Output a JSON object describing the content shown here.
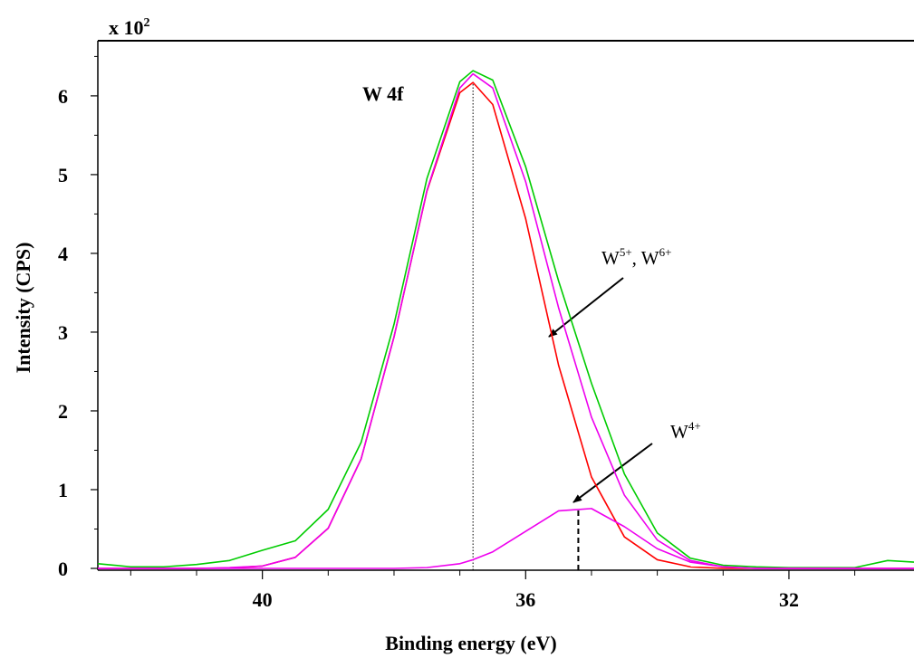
{
  "chart_data": {
    "type": "line",
    "title": "W 4f",
    "x_label": "Binding energy (eV)",
    "y_label": "Intensity (CPS)",
    "y_multiplier": [
      "x 10",
      "2"
    ],
    "x": [
      42.5,
      42,
      41.5,
      41,
      40.5,
      40,
      39.5,
      39,
      38.5,
      38,
      37.5,
      37,
      36.8,
      36.5,
      36,
      35.5,
      35,
      34.5,
      34,
      33.5,
      33,
      32.5,
      32,
      31.5,
      31,
      30.5,
      30.1
    ],
    "series": [
      {
        "color": "#00cc00",
        "values": [
          0.06,
          0.02,
          0.02,
          0.05,
          0.1,
          0.23,
          0.35,
          0.75,
          1.6,
          3.1,
          4.95,
          6.18,
          6.32,
          6.2,
          5.1,
          3.65,
          2.35,
          1.2,
          0.45,
          0.13,
          0.04,
          0.02,
          0.01,
          0.01,
          0.01,
          0.1,
          0.08
        ]
      },
      {
        "color": "#ff0000",
        "values": [
          0,
          0,
          0,
          0,
          0.005,
          0.03,
          0.14,
          0.51,
          1.39,
          2.94,
          4.79,
          6.04,
          6.17,
          5.89,
          4.44,
          2.58,
          1.16,
          0.4,
          0.11,
          0.02,
          0,
          0,
          0,
          0,
          0,
          0,
          0
        ]
      },
      {
        "color": "#ee00ee",
        "values": [
          0,
          0,
          0,
          0,
          0.01,
          0.03,
          0.14,
          0.51,
          1.39,
          2.94,
          4.8,
          6.1,
          6.28,
          6.1,
          4.91,
          3.31,
          1.92,
          0.93,
          0.36,
          0.1,
          0.02,
          0,
          0,
          0,
          0,
          0,
          0
        ]
      },
      {
        "color": "#ee00ee",
        "values": [
          0,
          0,
          0,
          0,
          0,
          0,
          0,
          0,
          0,
          0,
          0.01,
          0.06,
          0.11,
          0.21,
          0.47,
          0.73,
          0.76,
          0.53,
          0.25,
          0.08,
          0.02,
          0,
          0,
          0,
          0,
          0,
          0
        ]
      }
    ],
    "xlim": [
      42.5,
      30.1
    ],
    "ylim": [
      0,
      6.7
    ],
    "xticks": [
      40,
      36,
      32
    ],
    "yticks": [
      0,
      1,
      2,
      3,
      4,
      5,
      6
    ],
    "x_minor_ticks": [
      42,
      41,
      39,
      38,
      37,
      35,
      34,
      33,
      31
    ],
    "y_minor_ticks": [
      0.5,
      1.5,
      2.5,
      3.5,
      4.5,
      5.5,
      6.5
    ],
    "peak_markers": [
      {
        "x": 36.8,
        "y": 6.17,
        "style": "dotted"
      },
      {
        "x": 35.2,
        "y": 0.78,
        "style": "dashed"
      }
    ],
    "annotations": [
      {
        "parts": [
          "W",
          "5+",
          ", W",
          "6+"
        ]
      },
      {
        "parts": [
          "W",
          "4+"
        ]
      }
    ]
  }
}
